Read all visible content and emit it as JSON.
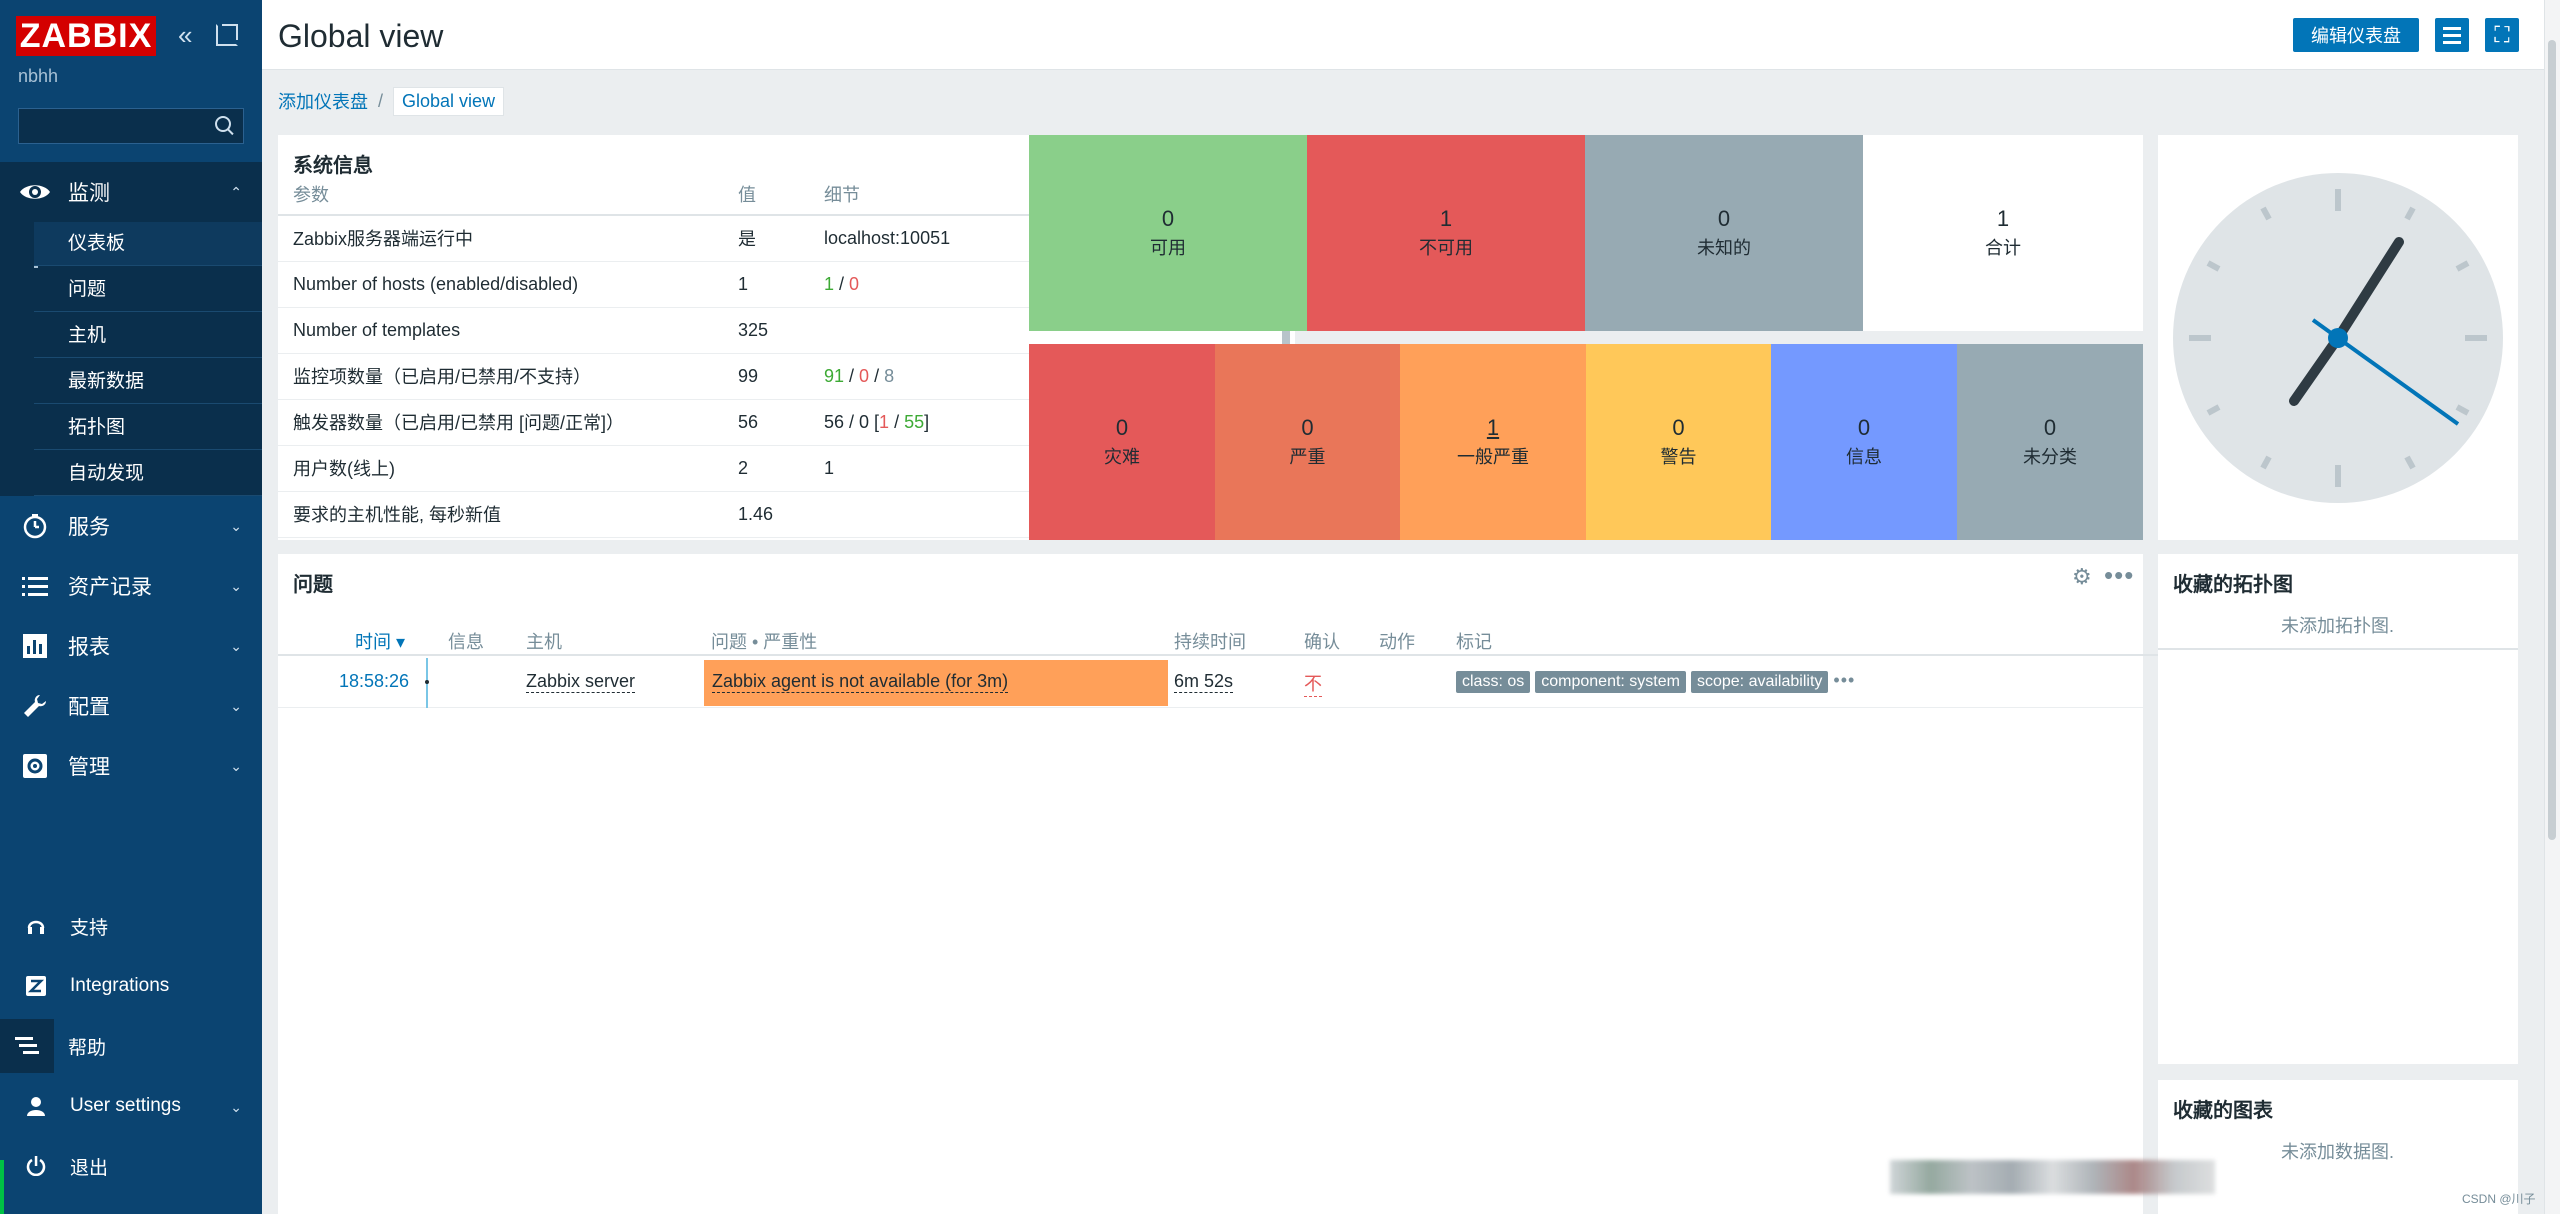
{
  "app": {
    "logo": "ZABBIX",
    "server_name": "nbhh",
    "collapse_icon": "«",
    "kiosk_icon": "⤢"
  },
  "search": {
    "placeholder": ""
  },
  "nav": {
    "sections": [
      {
        "label": "监测",
        "icon": "eye-icon",
        "chev": "⌃"
      },
      {
        "label": "服务",
        "icon": "clock-icon",
        "chev": "⌄"
      },
      {
        "label": "资产记录",
        "icon": "list-icon",
        "chev": "⌄"
      },
      {
        "label": "报表",
        "icon": "bar-chart-icon",
        "chev": "⌄"
      },
      {
        "label": "配置",
        "icon": "wrench-icon",
        "chev": "⌄"
      },
      {
        "label": "管理",
        "icon": "gear-icon",
        "chev": "⌄"
      }
    ],
    "monitoring_items": [
      "仪表板",
      "问题",
      "主机",
      "最新数据",
      "拓扑图",
      "自动发现"
    ],
    "bottom": [
      {
        "label": "支持",
        "icon": "headset-icon"
      },
      {
        "label": "Integrations",
        "icon": "integrations-icon"
      },
      {
        "label": "帮助",
        "icon": "help-icon"
      },
      {
        "label": "User settings",
        "icon": "user-icon",
        "chev": "⌄"
      },
      {
        "label": "退出",
        "icon": "power-icon"
      }
    ]
  },
  "header": {
    "title": "Global view",
    "edit_label": "编辑仪表盘",
    "fullscreen_icon": "⛶"
  },
  "breadcrumb": {
    "parent": "添加仪表盘",
    "sep": "/",
    "current": "Global view"
  },
  "system_info": {
    "title": "系统信息",
    "columns": [
      "参数",
      "值",
      "细节"
    ],
    "rows": [
      {
        "param": "Zabbix服务器端运行中",
        "value": "是",
        "detail": "localhost:10051"
      },
      {
        "param": "Number of hosts (enabled/disabled)",
        "value": "1",
        "d1": "1",
        "s1": " / ",
        "d2": "0"
      },
      {
        "param": "Number of templates",
        "value": "325",
        "detail": ""
      },
      {
        "param": "监控项数量（已启用/已禁用/不支持）",
        "value": "99",
        "d1": "91",
        "s1": " / ",
        "d2": "0",
        "s2": " / ",
        "d3": "8"
      },
      {
        "param": "触发器数量（已启用/已禁用 [问题/正常]）",
        "value": "56",
        "pre": "56 / 0 [",
        "d1": "1",
        "s1": " / ",
        "d2": "55",
        "post": "]"
      },
      {
        "param": "用户数(线上)",
        "value": "2",
        "d1": "1"
      },
      {
        "param": "要求的主机性能, 每秒新值",
        "value": "1.46",
        "detail": ""
      }
    ]
  },
  "host_availability": [
    {
      "count": "0",
      "label": "可用",
      "color": "#8acf8a"
    },
    {
      "count": "1",
      "label": "不可用",
      "color": "#e45959"
    },
    {
      "count": "0",
      "label": "未知的",
      "color": "#97aab3"
    },
    {
      "count": "1",
      "label": "合计",
      "color": "#ffffff"
    }
  ],
  "severities": [
    {
      "count": "0",
      "label": "灾难",
      "color": "#e45959"
    },
    {
      "count": "0",
      "label": "严重",
      "color": "#e97659"
    },
    {
      "count": "1",
      "label": "一般严重",
      "color": "#ffa059"
    },
    {
      "count": "0",
      "label": "警告",
      "color": "#ffc859"
    },
    {
      "count": "0",
      "label": "信息",
      "color": "#7499ff"
    },
    {
      "count": "0",
      "label": "未分类",
      "color": "#97aab3"
    }
  ],
  "problems": {
    "title": "问题",
    "columns": {
      "time": "时间 ▾",
      "info": "信息",
      "host": "主机",
      "problem": "问题 • 严重性",
      "duration": "持续时间",
      "ack": "确认",
      "actions": "动作",
      "tags": "标记"
    },
    "rows": [
      {
        "time": "18:58:26",
        "host": "Zabbix server",
        "problem": "Zabbix agent is not available (for 3m)",
        "duration": "6m 52s",
        "ack": "不",
        "tags": [
          "class: os",
          "component: system",
          "scope: availability"
        ],
        "more": "•••"
      }
    ],
    "settings_icon": "⚙",
    "more_icon": "•••"
  },
  "fav_maps": {
    "title": "收藏的拓扑图",
    "empty": "未添加拓扑图."
  },
  "fav_graphs": {
    "title": "收藏的图表",
    "empty": "未添加数据图."
  },
  "watermark": "CSDN @川子"
}
